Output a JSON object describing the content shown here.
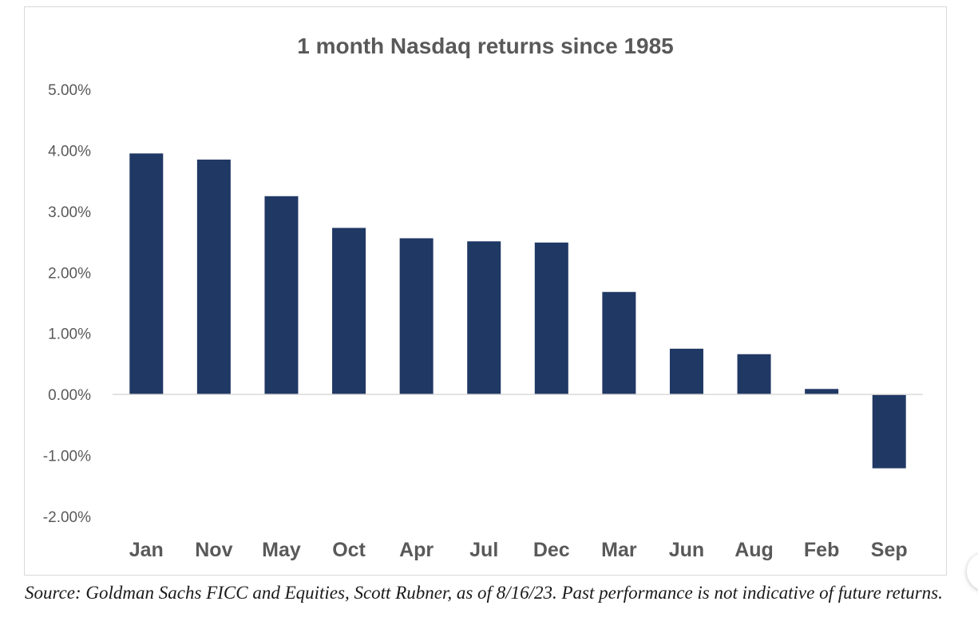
{
  "chart_data": {
    "type": "bar",
    "title": "1 month Nasdaq returns since 1985",
    "xlabel": "",
    "ylabel": "",
    "categories": [
      "Jan",
      "Nov",
      "May",
      "Oct",
      "Apr",
      "Jul",
      "Dec",
      "Mar",
      "Jun",
      "Aug",
      "Feb",
      "Sep"
    ],
    "values": [
      3.95,
      3.85,
      3.25,
      2.73,
      2.56,
      2.51,
      2.49,
      1.68,
      0.75,
      0.66,
      0.09,
      -1.21
    ],
    "y_ticks": [
      "5.00%",
      "4.00%",
      "3.00%",
      "2.00%",
      "1.00%",
      "0.00%",
      "-1.00%",
      "-2.00%"
    ],
    "ylim": [
      -2,
      5
    ],
    "grid": false,
    "legend": "none",
    "bar_color": "#203864"
  },
  "source_note": "Source: Goldman Sachs FICC and Equities, Scott Rubner,  as of 8/16/23. Past performance is not indicative of future returns."
}
